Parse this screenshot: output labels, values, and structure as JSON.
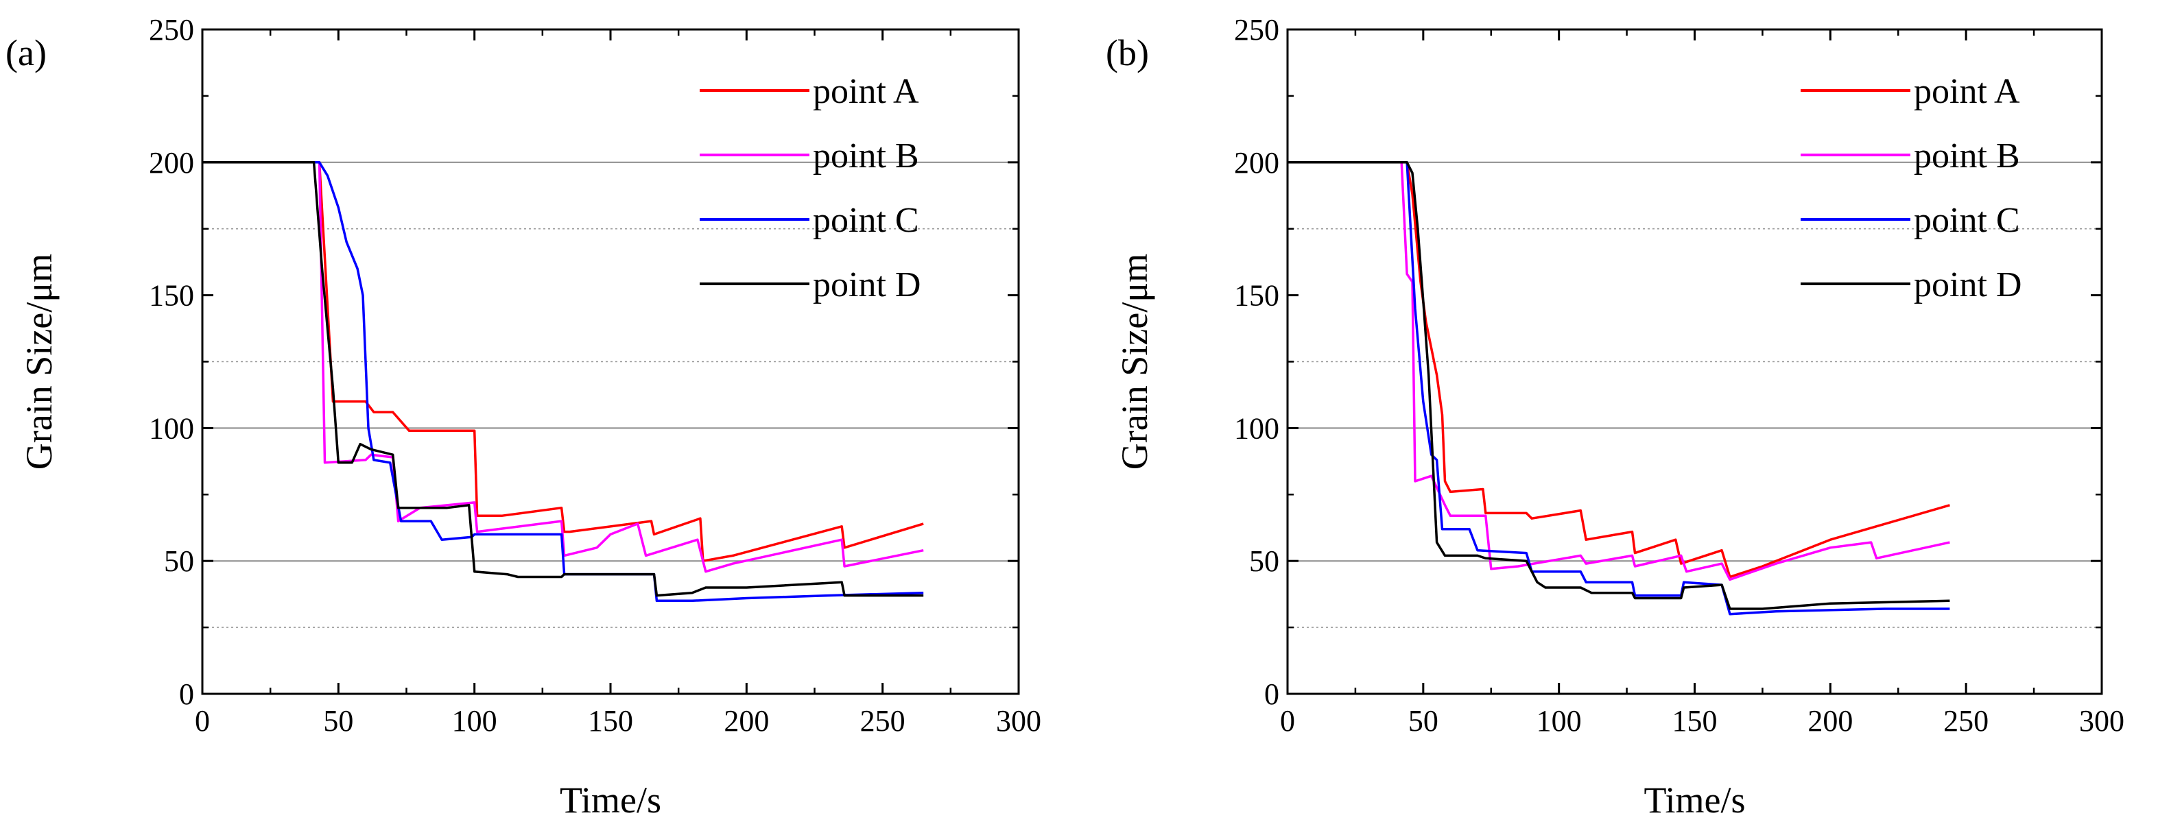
{
  "chart_data": [
    {
      "type": "line",
      "panel_label": "(a)",
      "xlabel": "Time/s",
      "ylabel": "Grain Size/μm",
      "xlim": [
        0,
        300
      ],
      "ylim": [
        0,
        250
      ],
      "xticks": [
        "0",
        "50",
        "100",
        "150",
        "200",
        "250",
        "300"
      ],
      "yticks": [
        "0",
        "50",
        "100",
        "150",
        "200",
        "250"
      ],
      "gridlines_major": [
        50,
        100,
        200
      ],
      "gridlines_minor": [
        25,
        125,
        175
      ],
      "legend_position": "top-right",
      "series": [
        {
          "name": "point A",
          "color": "#ff0000",
          "points": [
            [
              0,
              200
            ],
            [
              43,
              200
            ],
            [
              48,
              110
            ],
            [
              60,
              110
            ],
            [
              63,
              106
            ],
            [
              70,
              106
            ],
            [
              76,
              99
            ],
            [
              87,
              99
            ],
            [
              100,
              99
            ],
            [
              101,
              67
            ],
            [
              110,
              67
            ],
            [
              132,
              70
            ],
            [
              133,
              61
            ],
            [
              135,
              61
            ],
            [
              165,
              65
            ],
            [
              166,
              60
            ],
            [
              183,
              66
            ],
            [
              184,
              50
            ],
            [
              195,
              52
            ],
            [
              235,
              63
            ],
            [
              236,
              55
            ],
            [
              265,
              64
            ]
          ]
        },
        {
          "name": "point B",
          "color": "#ff00ff",
          "points": [
            [
              0,
              200
            ],
            [
              43,
              200
            ],
            [
              45,
              87
            ],
            [
              60,
              88
            ],
            [
              62,
              90
            ],
            [
              70,
              89
            ],
            [
              72,
              65
            ],
            [
              80,
              70
            ],
            [
              100,
              72
            ],
            [
              101,
              61
            ],
            [
              132,
              65
            ],
            [
              133,
              52
            ],
            [
              145,
              55
            ],
            [
              150,
              60
            ],
            [
              160,
              64
            ],
            [
              163,
              52
            ],
            [
              182,
              58
            ],
            [
              185,
              46
            ],
            [
              195,
              49
            ],
            [
              235,
              58
            ],
            [
              236,
              48
            ],
            [
              265,
              54
            ]
          ]
        },
        {
          "name": "point C",
          "color": "#0000ff",
          "points": [
            [
              0,
              200
            ],
            [
              43,
              200
            ],
            [
              46,
              195
            ],
            [
              50,
              183
            ],
            [
              53,
              170
            ],
            [
              57,
              160
            ],
            [
              59,
              150
            ],
            [
              61,
              100
            ],
            [
              63,
              88
            ],
            [
              69,
              87
            ],
            [
              73,
              65
            ],
            [
              84,
              65
            ],
            [
              88,
              58
            ],
            [
              99,
              59
            ],
            [
              100,
              60
            ],
            [
              132,
              60
            ],
            [
              133,
              45
            ],
            [
              166,
              45
            ],
            [
              167,
              35
            ],
            [
              180,
              35
            ],
            [
              200,
              36
            ],
            [
              230,
              37
            ],
            [
              265,
              38
            ]
          ]
        },
        {
          "name": "point D",
          "color": "#000000",
          "points": [
            [
              0,
              200
            ],
            [
              41,
              200
            ],
            [
              44,
              160
            ],
            [
              48,
              115
            ],
            [
              50,
              87
            ],
            [
              55,
              87
            ],
            [
              58,
              94
            ],
            [
              62,
              92
            ],
            [
              70,
              90
            ],
            [
              72,
              70
            ],
            [
              90,
              70
            ],
            [
              98,
              71
            ],
            [
              100,
              46
            ],
            [
              112,
              45
            ],
            [
              116,
              44
            ],
            [
              132,
              44
            ],
            [
              133,
              45
            ],
            [
              166,
              45
            ],
            [
              167,
              37
            ],
            [
              180,
              38
            ],
            [
              185,
              40
            ],
            [
              200,
              40
            ],
            [
              235,
              42
            ],
            [
              236,
              37
            ],
            [
              265,
              37
            ]
          ]
        }
      ]
    },
    {
      "type": "line",
      "panel_label": "(b)",
      "xlabel": "Time/s",
      "ylabel": "Grain Size/μm",
      "xlim": [
        0,
        300
      ],
      "ylim": [
        0,
        250
      ],
      "xticks": [
        "0",
        "50",
        "100",
        "150",
        "200",
        "250",
        "300"
      ],
      "yticks": [
        "0",
        "50",
        "100",
        "150",
        "200",
        "250"
      ],
      "gridlines_major": [
        50,
        100,
        200
      ],
      "gridlines_minor": [
        25,
        125,
        175
      ],
      "legend_position": "top-right",
      "series": [
        {
          "name": "point A",
          "color": "#ff0000",
          "points": [
            [
              0,
              200
            ],
            [
              44,
              200
            ],
            [
              46,
              188
            ],
            [
              49,
              155
            ],
            [
              51,
              140
            ],
            [
              53,
              130
            ],
            [
              55,
              120
            ],
            [
              57,
              105
            ],
            [
              58,
              80
            ],
            [
              60,
              76
            ],
            [
              72,
              77
            ],
            [
              73,
              68
            ],
            [
              88,
              68
            ],
            [
              90,
              66
            ],
            [
              108,
              69
            ],
            [
              110,
              58
            ],
            [
              127,
              61
            ],
            [
              128,
              53
            ],
            [
              143,
              58
            ],
            [
              145,
              49
            ],
            [
              160,
              54
            ],
            [
              163,
              44
            ],
            [
              175,
              48
            ],
            [
              200,
              58
            ],
            [
              244,
              71
            ]
          ]
        },
        {
          "name": "point B",
          "color": "#ff00ff",
          "points": [
            [
              0,
              200
            ],
            [
              42,
              200
            ],
            [
              44,
              158
            ],
            [
              46,
              155
            ],
            [
              47,
              80
            ],
            [
              53,
              82
            ],
            [
              58,
              71
            ],
            [
              60,
              67
            ],
            [
              73,
              67
            ],
            [
              75,
              47
            ],
            [
              85,
              48
            ],
            [
              108,
              52
            ],
            [
              110,
              49
            ],
            [
              127,
              52
            ],
            [
              128,
              48
            ],
            [
              145,
              52
            ],
            [
              147,
              46
            ],
            [
              160,
              49
            ],
            [
              163,
              43
            ],
            [
              180,
              49
            ],
            [
              200,
              55
            ],
            [
              215,
              57
            ],
            [
              217,
              51
            ],
            [
              244,
              57
            ]
          ]
        },
        {
          "name": "point C",
          "color": "#0000ff",
          "points": [
            [
              0,
              200
            ],
            [
              44,
              200
            ],
            [
              47,
              145
            ],
            [
              50,
              110
            ],
            [
              53,
              90
            ],
            [
              55,
              88
            ],
            [
              57,
              62
            ],
            [
              67,
              62
            ],
            [
              70,
              54
            ],
            [
              88,
              53
            ],
            [
              90,
              46
            ],
            [
              108,
              46
            ],
            [
              110,
              42
            ],
            [
              127,
              42
            ],
            [
              128,
              37
            ],
            [
              145,
              37
            ],
            [
              146,
              42
            ],
            [
              160,
              41
            ],
            [
              163,
              30
            ],
            [
              180,
              31
            ],
            [
              220,
              32
            ],
            [
              244,
              32
            ]
          ]
        },
        {
          "name": "point D",
          "color": "#000000",
          "points": [
            [
              0,
              200
            ],
            [
              44,
              200
            ],
            [
              46,
              196
            ],
            [
              48,
              175
            ],
            [
              50,
              148
            ],
            [
              52,
              120
            ],
            [
              55,
              57
            ],
            [
              58,
              52
            ],
            [
              70,
              52
            ],
            [
              73,
              51
            ],
            [
              88,
              50
            ],
            [
              92,
              42
            ],
            [
              95,
              40
            ],
            [
              108,
              40
            ],
            [
              112,
              38
            ],
            [
              127,
              38
            ],
            [
              128,
              36
            ],
            [
              145,
              36
            ],
            [
              146,
              40
            ],
            [
              160,
              41
            ],
            [
              163,
              32
            ],
            [
              175,
              32
            ],
            [
              200,
              34
            ],
            [
              244,
              35
            ]
          ]
        }
      ]
    }
  ]
}
